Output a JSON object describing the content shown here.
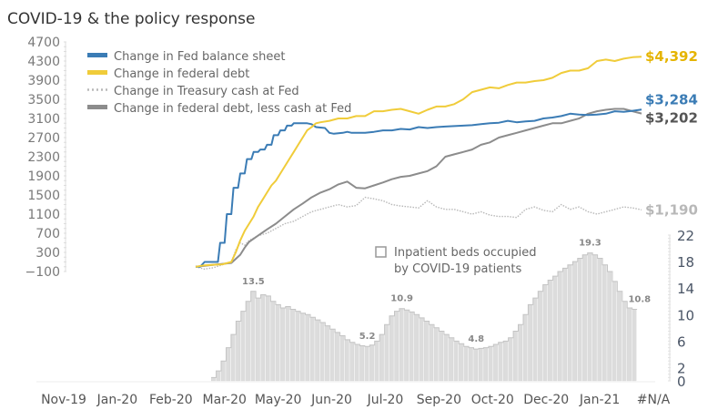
{
  "chart_data": {
    "type": "line",
    "title": "COVID-19 & the policy response",
    "xlabel": "",
    "ylabel": "",
    "x_tick_labels": [
      "Nov-19",
      "Jan-20",
      "Feb-20",
      "Mar-20",
      "May-20",
      "Jun-20",
      "Jul-20",
      "Sep-20",
      "Oct-20",
      "Dec-20",
      "Jan-21",
      "#N/A"
    ],
    "y_left": {
      "range": [
        -100,
        4700
      ],
      "ticks": [
        4700,
        4300,
        3900,
        3500,
        3100,
        2700,
        2300,
        1900,
        1500,
        1100,
        700,
        300,
        -100
      ]
    },
    "y_right": {
      "range": [
        0,
        22
      ],
      "ticks": [
        22,
        18,
        14,
        10,
        6,
        2,
        0
      ]
    },
    "x_index_range": [
      0,
      100
    ],
    "series": [
      {
        "name": "Change in Fed balance sheet",
        "color": "#3b7cb5",
        "style": "solid",
        "end_label": "$3,284",
        "x": [
          0,
          1,
          2,
          3,
          3.5,
          5,
          5.5,
          6.5,
          7,
          8,
          8.5,
          9.5,
          10,
          11,
          11.5,
          12.5,
          13,
          14,
          14.5,
          15.5,
          16,
          17,
          17.5,
          18.5,
          19,
          20,
          20.5,
          21.5,
          22,
          23,
          24,
          25,
          26,
          27,
          28,
          29,
          30,
          31,
          32,
          33,
          34,
          35,
          36,
          38,
          40,
          42,
          44,
          46,
          48,
          50,
          52,
          54,
          56,
          58,
          60,
          62,
          64,
          66,
          68,
          70,
          72,
          74,
          76,
          78,
          80,
          82,
          84,
          86,
          88,
          90,
          92,
          94,
          96,
          98,
          100
        ],
        "values": [
          0,
          0,
          100,
          100,
          100,
          100,
          500,
          500,
          1100,
          1100,
          1650,
          1650,
          1950,
          1950,
          2250,
          2250,
          2400,
          2400,
          2450,
          2450,
          2550,
          2550,
          2750,
          2750,
          2850,
          2850,
          2950,
          2950,
          3000,
          3000,
          3000,
          3000,
          2980,
          2920,
          2910,
          2900,
          2800,
          2780,
          2790,
          2800,
          2820,
          2800,
          2800,
          2800,
          2820,
          2850,
          2850,
          2880,
          2870,
          2920,
          2900,
          2920,
          2930,
          2940,
          2950,
          2960,
          2980,
          3000,
          3010,
          3050,
          3020,
          3040,
          3050,
          3100,
          3120,
          3150,
          3200,
          3180,
          3170,
          3180,
          3200,
          3250,
          3240,
          3260,
          3284
        ]
      },
      {
        "name": "Change in federal debt",
        "color": "#f0cc3a",
        "style": "solid",
        "end_label": "$4,392",
        "x": [
          0,
          2,
          4,
          6,
          8,
          9,
          10,
          11,
          12,
          13,
          14,
          15,
          16,
          17,
          18,
          19,
          20,
          21,
          22,
          23,
          24,
          25,
          26,
          27,
          28,
          30,
          32,
          34,
          36,
          38,
          40,
          42,
          44,
          46,
          48,
          50,
          52,
          54,
          56,
          58,
          60,
          62,
          64,
          66,
          68,
          70,
          72,
          74,
          76,
          78,
          80,
          82,
          84,
          86,
          88,
          90,
          92,
          94,
          96,
          98,
          100
        ],
        "values": [
          0,
          30,
          40,
          50,
          100,
          300,
          550,
          750,
          900,
          1050,
          1250,
          1400,
          1550,
          1700,
          1800,
          1950,
          2100,
          2250,
          2400,
          2550,
          2700,
          2850,
          2920,
          3000,
          3020,
          3050,
          3100,
          3100,
          3150,
          3150,
          3250,
          3250,
          3280,
          3300,
          3250,
          3200,
          3280,
          3350,
          3350,
          3400,
          3500,
          3650,
          3700,
          3750,
          3730,
          3800,
          3850,
          3850,
          3880,
          3900,
          3950,
          4050,
          4100,
          4100,
          4150,
          4300,
          4330,
          4300,
          4350,
          4380,
          4392
        ]
      },
      {
        "name": "Change in Treasury cash at Fed",
        "color": "#b8b8b8",
        "style": "dotted",
        "end_label": "$1,190",
        "x": [
          0,
          2,
          4,
          6,
          8,
          9,
          10,
          11,
          12,
          14,
          16,
          18,
          20,
          22,
          24,
          26,
          28,
          30,
          32,
          34,
          36,
          38,
          40,
          42,
          44,
          46,
          48,
          50,
          52,
          54,
          56,
          58,
          60,
          62,
          64,
          66,
          68,
          70,
          72,
          74,
          76,
          78,
          80,
          82,
          84,
          86,
          88,
          90,
          92,
          94,
          96,
          98,
          100
        ],
        "values": [
          0,
          -50,
          -20,
          40,
          100,
          350,
          500,
          450,
          550,
          650,
          700,
          800,
          900,
          950,
          1050,
          1150,
          1200,
          1250,
          1300,
          1250,
          1280,
          1450,
          1420,
          1380,
          1300,
          1270,
          1250,
          1230,
          1380,
          1250,
          1200,
          1200,
          1150,
          1100,
          1150,
          1080,
          1050,
          1050,
          1030,
          1200,
          1250,
          1180,
          1150,
          1300,
          1200,
          1250,
          1150,
          1100,
          1150,
          1200,
          1250,
          1230,
          1190
        ]
      },
      {
        "name": "Change in federal debt, less cash at Fed",
        "color": "#8c8c8c",
        "style": "solid",
        "end_label": "$3,202",
        "x": [
          0,
          2,
          4,
          6,
          8,
          10,
          11,
          12,
          14,
          16,
          18,
          20,
          22,
          24,
          26,
          28,
          30,
          32,
          34,
          36,
          38,
          40,
          42,
          44,
          46,
          48,
          50,
          52,
          54,
          56,
          58,
          60,
          62,
          64,
          66,
          68,
          70,
          72,
          74,
          76,
          78,
          80,
          82,
          84,
          86,
          88,
          90,
          92,
          94,
          96,
          98,
          100
        ],
        "values": [
          0,
          20,
          40,
          60,
          80,
          250,
          400,
          520,
          650,
          780,
          900,
          1050,
          1200,
          1320,
          1450,
          1550,
          1620,
          1720,
          1780,
          1650,
          1640,
          1700,
          1760,
          1830,
          1880,
          1900,
          1950,
          2000,
          2100,
          2300,
          2350,
          2400,
          2450,
          2550,
          2600,
          2700,
          2750,
          2800,
          2850,
          2900,
          2950,
          3000,
          3000,
          3050,
          3100,
          3200,
          3250,
          3280,
          3300,
          3300,
          3250,
          3202
        ]
      }
    ],
    "bar_series": {
      "name": "Inpatient beds occupied by COVID-19 patients",
      "axis": "right",
      "color": "#dcdcdc",
      "x_start": 3.5,
      "x_end": 99,
      "values": [
        0.5,
        1.5,
        3,
        5,
        7,
        9,
        10.5,
        12,
        13.5,
        12.5,
        13,
        12.8,
        12,
        11.5,
        11,
        11.2,
        10.8,
        10.5,
        10.2,
        10,
        9.6,
        9.2,
        8.8,
        8.3,
        7.8,
        7.3,
        6.8,
        6.2,
        5.8,
        5.5,
        5.3,
        5.2,
        5.4,
        6,
        7,
        8.5,
        9.8,
        10.5,
        10.9,
        10.7,
        10.4,
        10,
        9.5,
        9,
        8.5,
        8,
        7.5,
        7,
        6.5,
        6,
        5.6,
        5.2,
        5,
        4.8,
        4.9,
        5,
        5.2,
        5.5,
        5.8,
        6,
        6.5,
        7.5,
        8.5,
        10,
        11.5,
        12.5,
        13.5,
        14.5,
        15.2,
        15.8,
        16.5,
        17,
        17.5,
        18,
        18.5,
        19,
        19.3,
        19,
        18.5,
        17.5,
        16.5,
        15,
        13.5,
        12,
        11,
        10.8
      ],
      "annotations": [
        {
          "label": "13.5",
          "value": 13.5,
          "index": 8
        },
        {
          "label": "5.2",
          "value": 5.2,
          "index": 31
        },
        {
          "label": "10.9",
          "value": 10.9,
          "index": 38
        },
        {
          "label": "4.8",
          "value": 4.8,
          "index": 53
        },
        {
          "label": "19.3",
          "value": 19.3,
          "index": 76
        },
        {
          "label": "10.8",
          "value": 10.8,
          "index": 86
        }
      ]
    },
    "legend": {
      "placement": "top-left",
      "entries": [
        "Change in Fed balance sheet",
        "Change in federal debt",
        "Change in Treasury cash at Fed",
        "Change in federal debt, less cash at Fed"
      ],
      "bar_legend_label_lines": [
        "Inpatient beds occupied",
        "by COVID-19 patients"
      ],
      "bar_legend_placement": "center-right"
    },
    "grid": false
  }
}
